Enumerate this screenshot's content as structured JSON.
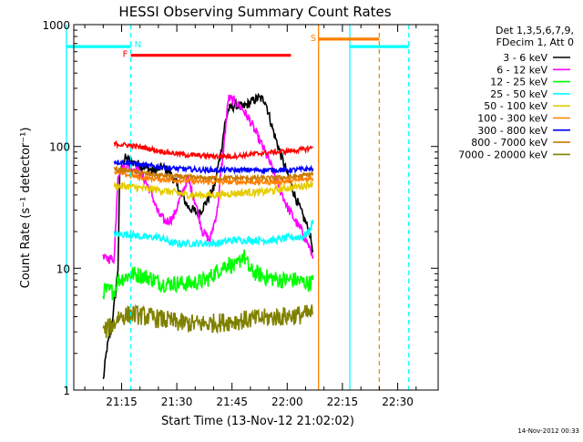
{
  "chart_data": {
    "type": "line",
    "title": "HESSI Observing Summary Count Rates",
    "xlabel": "Start Time (13-Nov-12 21:02:02)",
    "ylabel": "Count Rate (s⁻¹ detector⁻¹)",
    "yscale": "log",
    "ylim": [
      1,
      1000
    ],
    "xlim": [
      "21:02",
      "22:41"
    ],
    "x_unit": "minutes after 21:00 UT",
    "x_ticks": [
      {
        "value": 15,
        "label": "21:15"
      },
      {
        "value": 30,
        "label": "21:30"
      },
      {
        "value": 45,
        "label": "21:45"
      },
      {
        "value": 60,
        "label": "22:00"
      },
      {
        "value": 75,
        "label": "22:15"
      },
      {
        "value": 90,
        "label": "22:30"
      }
    ],
    "y_ticks": [
      {
        "value": 1,
        "label": "1"
      },
      {
        "value": 10,
        "label": "10"
      },
      {
        "value": 100,
        "label": "100"
      },
      {
        "value": 1000,
        "label": "1000"
      }
    ],
    "legend_header": [
      "Det 1,3,5,6,7,9,",
      "FDecim 1, Att 0"
    ],
    "legend_position": "right",
    "footer_date": "14-Nov-2012 00:33",
    "series": [
      {
        "name": "3 - 6 keV",
        "color": "#000000",
        "noise": 0.04,
        "points": [
          [
            10,
            1.2
          ],
          [
            11,
            2.2
          ],
          [
            12,
            3
          ],
          [
            13,
            5
          ],
          [
            14,
            10
          ],
          [
            14.5,
            60
          ],
          [
            16,
            80
          ],
          [
            20,
            70
          ],
          [
            24,
            62
          ],
          [
            26,
            68
          ],
          [
            28,
            62
          ],
          [
            30,
            48
          ],
          [
            33,
            32
          ],
          [
            36,
            28
          ],
          [
            38,
            35
          ],
          [
            40,
            45
          ],
          [
            42,
            90
          ],
          [
            43,
            150
          ],
          [
            44,
            200
          ],
          [
            46,
            220
          ],
          [
            48,
            210
          ],
          [
            50,
            230
          ],
          [
            52,
            250
          ],
          [
            54,
            240
          ],
          [
            56,
            140
          ],
          [
            58,
            90
          ],
          [
            60,
            60
          ],
          [
            62,
            40
          ],
          [
            64,
            28
          ],
          [
            66,
            20
          ],
          [
            67,
            14
          ]
        ]
      },
      {
        "name": "6 - 12 keV",
        "color": "#ff00ff",
        "noise": 0.04,
        "points": [
          [
            10,
            12
          ],
          [
            13,
            12
          ],
          [
            14,
            60
          ],
          [
            16,
            70
          ],
          [
            19,
            65
          ],
          [
            21,
            55
          ],
          [
            23,
            42
          ],
          [
            25,
            28
          ],
          [
            27,
            24
          ],
          [
            29,
            26
          ],
          [
            31,
            38
          ],
          [
            33,
            55
          ],
          [
            35,
            35
          ],
          [
            37,
            20
          ],
          [
            39,
            17
          ],
          [
            41,
            30
          ],
          [
            43,
            120
          ],
          [
            44,
            250
          ],
          [
            46,
            230
          ],
          [
            48,
            200
          ],
          [
            50,
            160
          ],
          [
            52,
            120
          ],
          [
            54,
            90
          ],
          [
            56,
            65
          ],
          [
            58,
            45
          ],
          [
            60,
            32
          ],
          [
            62,
            25
          ],
          [
            64,
            20
          ],
          [
            66,
            15
          ],
          [
            67,
            12
          ]
        ]
      },
      {
        "name": "12 - 25 keV",
        "color": "#00ff00",
        "noise": 0.07,
        "points": [
          [
            10,
            6.5
          ],
          [
            13,
            6.5
          ],
          [
            14,
            8
          ],
          [
            18,
            9
          ],
          [
            22,
            8.5
          ],
          [
            26,
            7.5
          ],
          [
            30,
            7.5
          ],
          [
            34,
            7.5
          ],
          [
            38,
            8
          ],
          [
            42,
            10
          ],
          [
            44,
            11
          ],
          [
            46,
            10
          ],
          [
            48,
            13
          ],
          [
            50,
            9.5
          ],
          [
            54,
            8.5
          ],
          [
            58,
            8
          ],
          [
            62,
            8
          ],
          [
            66,
            7.5
          ],
          [
            67,
            8
          ]
        ]
      },
      {
        "name": "25 - 50 keV",
        "color": "#00ffff",
        "noise": 0.03,
        "points": [
          [
            13,
            19
          ],
          [
            17,
            19
          ],
          [
            21,
            18
          ],
          [
            25,
            18
          ],
          [
            29,
            16
          ],
          [
            33,
            16
          ],
          [
            37,
            16
          ],
          [
            41,
            16
          ],
          [
            45,
            17
          ],
          [
            49,
            17
          ],
          [
            53,
            17
          ],
          [
            57,
            17
          ],
          [
            61,
            18
          ],
          [
            64,
            18
          ],
          [
            66,
            20
          ],
          [
            67,
            25
          ]
        ]
      },
      {
        "name": "50 - 100 keV",
        "color": "#e6cc00",
        "noise": 0.03,
        "points": [
          [
            13,
            47
          ],
          [
            17,
            47
          ],
          [
            21,
            45
          ],
          [
            25,
            44
          ],
          [
            29,
            42
          ],
          [
            33,
            40
          ],
          [
            37,
            40
          ],
          [
            41,
            40
          ],
          [
            45,
            41
          ],
          [
            49,
            42
          ],
          [
            53,
            42
          ],
          [
            57,
            44
          ],
          [
            61,
            46
          ],
          [
            65,
            48
          ],
          [
            67,
            50
          ]
        ]
      },
      {
        "name": "100 - 300 keV",
        "color": "#ff8000",
        "noise": 0.02,
        "points": [
          [
            13,
            62
          ],
          [
            17,
            58
          ],
          [
            21,
            55
          ],
          [
            25,
            54
          ],
          [
            29,
            53
          ],
          [
            33,
            52
          ],
          [
            37,
            51
          ],
          [
            41,
            51
          ],
          [
            45,
            51
          ],
          [
            49,
            51
          ],
          [
            53,
            51
          ],
          [
            57,
            51
          ],
          [
            61,
            52
          ],
          [
            65,
            54
          ],
          [
            67,
            55
          ]
        ]
      },
      {
        "name": "300 - 800 keV",
        "color": "#0000ff",
        "noise": 0.02,
        "points": [
          [
            13,
            75
          ],
          [
            17,
            73
          ],
          [
            21,
            70
          ],
          [
            25,
            68
          ],
          [
            29,
            66
          ],
          [
            33,
            65
          ],
          [
            37,
            64
          ],
          [
            41,
            64
          ],
          [
            45,
            64
          ],
          [
            49,
            64
          ],
          [
            53,
            64
          ],
          [
            57,
            64
          ],
          [
            61,
            64
          ],
          [
            65,
            65
          ],
          [
            67,
            66
          ]
        ]
      },
      {
        "name": "800 - 7000 keV",
        "color": "#cc7a00",
        "noise": 0.02,
        "points": [
          [
            13,
            65
          ],
          [
            17,
            63
          ],
          [
            21,
            60
          ],
          [
            25,
            58
          ],
          [
            29,
            57
          ],
          [
            33,
            56
          ],
          [
            37,
            55
          ],
          [
            41,
            55
          ],
          [
            45,
            55
          ],
          [
            49,
            55
          ],
          [
            53,
            55
          ],
          [
            57,
            55
          ],
          [
            61,
            56
          ],
          [
            65,
            58
          ],
          [
            67,
            60
          ]
        ]
      },
      {
        "name": "7000 - 20000 keV",
        "color": "#808000",
        "noise": 0.08,
        "points": [
          [
            10,
            3
          ],
          [
            13,
            3.5
          ],
          [
            14,
            4
          ],
          [
            18,
            4.2
          ],
          [
            22,
            4
          ],
          [
            26,
            3.8
          ],
          [
            30,
            3.6
          ],
          [
            34,
            3.5
          ],
          [
            38,
            3.5
          ],
          [
            42,
            3.6
          ],
          [
            46,
            3.7
          ],
          [
            50,
            3.8
          ],
          [
            54,
            3.9
          ],
          [
            58,
            4
          ],
          [
            62,
            4.1
          ],
          [
            66,
            4.2
          ],
          [
            67,
            4.3
          ]
        ]
      },
      {
        "name": "",
        "color": "#ff0000",
        "noise": 0.02,
        "points": [
          [
            13,
            105
          ],
          [
            17,
            102
          ],
          [
            21,
            98
          ],
          [
            25,
            92
          ],
          [
            29,
            88
          ],
          [
            33,
            85
          ],
          [
            37,
            84
          ],
          [
            41,
            83
          ],
          [
            45,
            83
          ],
          [
            49,
            85
          ],
          [
            53,
            88
          ],
          [
            57,
            90
          ],
          [
            61,
            92
          ],
          [
            65,
            95
          ],
          [
            67,
            98
          ]
        ]
      }
    ],
    "flags": [
      {
        "label": "F",
        "color": "#ff0000",
        "x_start": 17.5,
        "x_end": 61,
        "y": 560
      },
      {
        "label": "S",
        "color": "#ff8000",
        "x_start": 68.5,
        "x_end": 85,
        "y": 760
      },
      {
        "label": "N",
        "color": "#00ffff",
        "x_start": 0,
        "x_end": 17.5,
        "y": 660
      },
      {
        "label": "",
        "color": "#00ffff",
        "x_start": 77,
        "x_end": 93,
        "y": 660
      }
    ],
    "vlines": [
      {
        "x": 0,
        "color": "#00ffff",
        "dashed": false
      },
      {
        "x": 17.5,
        "color": "#00ffff",
        "dashed": true
      },
      {
        "x": 68.5,
        "color": "#ff8000",
        "dashed": false
      },
      {
        "x": 77,
        "color": "#00ffff",
        "dashed": false
      },
      {
        "x": 85,
        "color": "#ff8000",
        "dashed": true
      },
      {
        "x": 93,
        "color": "#00ffff",
        "dashed": true
      }
    ]
  }
}
